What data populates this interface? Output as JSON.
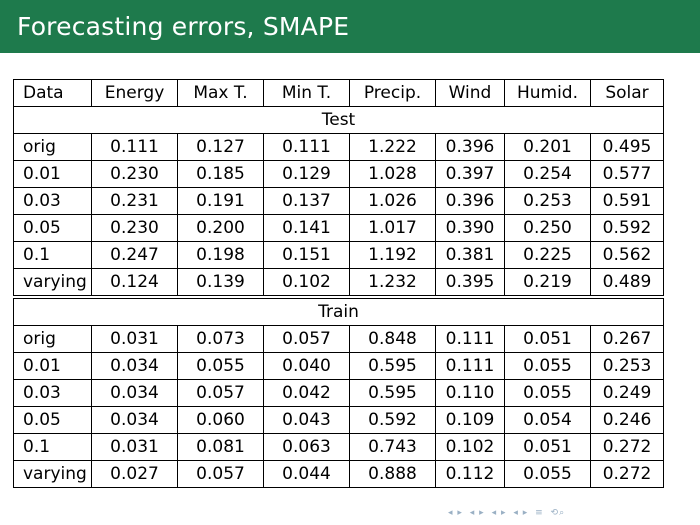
{
  "slide": {
    "title": "Forecasting errors, SMAPE",
    "accent_color": "#1e7a4c"
  },
  "table": {
    "columns": [
      "Data",
      "Energy",
      "Max T.",
      "Min T.",
      "Precip.",
      "Wind",
      "Humid.",
      "Solar"
    ],
    "test": {
      "label": "Test",
      "rows": [
        [
          "orig",
          "0.111",
          "0.127",
          "0.111",
          "1.222",
          "0.396",
          "0.201",
          "0.495"
        ],
        [
          "0.01",
          "0.230",
          "0.185",
          "0.129",
          "1.028",
          "0.397",
          "0.254",
          "0.577"
        ],
        [
          "0.03",
          "0.231",
          "0.191",
          "0.137",
          "1.026",
          "0.396",
          "0.253",
          "0.591"
        ],
        [
          "0.05",
          "0.230",
          "0.200",
          "0.141",
          "1.017",
          "0.390",
          "0.250",
          "0.592"
        ],
        [
          "0.1",
          "0.247",
          "0.198",
          "0.151",
          "1.192",
          "0.381",
          "0.225",
          "0.562"
        ],
        [
          "varying",
          "0.124",
          "0.139",
          "0.102",
          "1.232",
          "0.395",
          "0.219",
          "0.489"
        ]
      ]
    },
    "train": {
      "label": "Train",
      "rows": [
        [
          "orig",
          "0.031",
          "0.073",
          "0.057",
          "0.848",
          "0.111",
          "0.051",
          "0.267"
        ],
        [
          "0.01",
          "0.034",
          "0.055",
          "0.040",
          "0.595",
          "0.111",
          "0.055",
          "0.253"
        ],
        [
          "0.03",
          "0.034",
          "0.057",
          "0.042",
          "0.595",
          "0.110",
          "0.055",
          "0.249"
        ],
        [
          "0.05",
          "0.034",
          "0.060",
          "0.043",
          "0.592",
          "0.109",
          "0.054",
          "0.246"
        ],
        [
          "0.1",
          "0.031",
          "0.081",
          "0.063",
          "0.743",
          "0.102",
          "0.051",
          "0.272"
        ],
        [
          "varying",
          "0.027",
          "0.057",
          "0.044",
          "0.888",
          "0.112",
          "0.055",
          "0.272"
        ]
      ]
    }
  },
  "navigation": {
    "icons": [
      "nav-first-icon",
      "nav-prev-frame-icon",
      "nav-prev-section-icon",
      "nav-next-section-icon",
      "nav-prev-subsection-icon",
      "nav-next-subsection-icon",
      "nav-align-icon",
      "nav-search-icon"
    ]
  }
}
